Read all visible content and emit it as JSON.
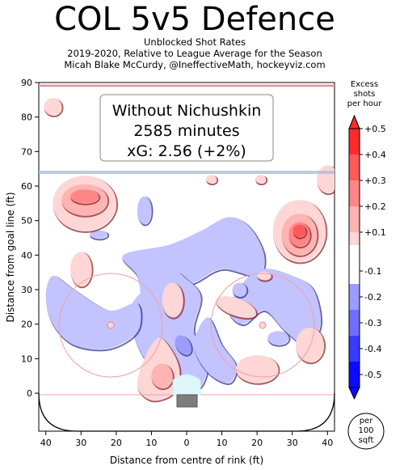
{
  "header": {
    "title": "COL 5v5 Defence",
    "subtitle_1": "Unblocked Shot Rates",
    "subtitle_2": "2019-2020, Relative to League Average for the Season",
    "subtitle_3": "Micah Blake McCurdy, @IneffectiveMath, hockeyviz.com"
  },
  "annotation": {
    "line_1": "Without Nichushkin",
    "line_2": "2585 minutes",
    "line_3": "xG: 2.56 (+2%)"
  },
  "colorbar": {
    "label_1": "Excess",
    "label_2": "shots",
    "label_3": "per hour",
    "ticks": [
      "+0.5",
      "+0.4",
      "+0.3",
      "+0.2",
      "+0.1",
      "-0.1",
      "-0.2",
      "-0.3",
      "-0.4",
      "-0.5"
    ],
    "colors": [
      "#ff2b2b",
      "#ff5a5a",
      "#ff8686",
      "#ffb3b3",
      "#ffd6d6",
      "#ffffff",
      "#c3c3ff",
      "#9c9cff",
      "#6e6eff",
      "#3a3aff",
      "#0b0bff"
    ]
  },
  "units_badge": {
    "line_1": "per",
    "line_2": "100",
    "line_3": "sqft"
  },
  "chart_data": {
    "type": "heatmap",
    "title": "COL 5v5 Defence",
    "xlabel": "Distance from centre of rink (ft)",
    "ylabel": "Distance from goal line (ft)",
    "xlim": [
      42,
      -42
    ],
    "ylim": [
      -11,
      90
    ],
    "x_ticks": [
      "40",
      "30",
      "20",
      "10",
      "0",
      "10",
      "20",
      "30",
      "40"
    ],
    "y_ticks": [
      "0",
      "10",
      "20",
      "30",
      "40",
      "50",
      "60",
      "70",
      "80",
      "90"
    ],
    "contour_levels": [
      -0.5,
      -0.4,
      -0.3,
      -0.2,
      -0.1,
      0.1,
      0.2,
      0.3,
      0.4,
      0.5
    ],
    "hot_regions": [
      {
        "x": 29,
        "y": 56,
        "peak": 0.3
      },
      {
        "x": -32,
        "y": 47,
        "peak": 0.4
      },
      {
        "x": 7,
        "y": 5,
        "peak": 0.2
      },
      {
        "x": -15,
        "y": 25,
        "peak": 0.1
      },
      {
        "x": 38,
        "y": 83,
        "peak": 0.1
      }
    ],
    "cold_regions": [
      {
        "x": 0,
        "y": 43,
        "peak": -0.1
      },
      {
        "x": 25,
        "y": 20,
        "peak": -0.1
      },
      {
        "x": 1,
        "y": 14,
        "peak": -0.2
      },
      {
        "x": -25,
        "y": 27,
        "peak": -0.1
      }
    ]
  }
}
